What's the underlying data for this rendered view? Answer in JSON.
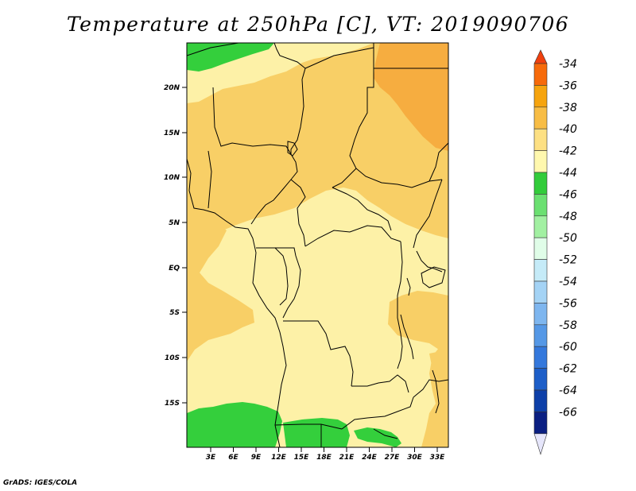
{
  "title": "Temperature at 250hPa [C], VT: 2019090706",
  "credit": "GrADS: IGES/COLA",
  "latitude_labels": [
    "20N",
    "15N",
    "10N",
    "5N",
    "EQ",
    "5S",
    "10S",
    "15S"
  ],
  "longitude_labels": [
    "3E",
    "6E",
    "9E",
    "12E",
    "15E",
    "18E",
    "21E",
    "24E",
    "27E",
    "30E",
    "33E"
  ],
  "colorbar": {
    "labels": [
      "-34",
      "-36",
      "-38",
      "-40",
      "-42",
      "-44",
      "-46",
      "-48",
      "-50",
      "-52",
      "-54",
      "-56",
      "-58",
      "-60",
      "-62",
      "-64",
      "-66"
    ],
    "colors": [
      "#f0400e",
      "#f76a0a",
      "#f6a40e",
      "#f8bd45",
      "#fde083",
      "#fff8ae",
      "#32cc3a",
      "#6be071",
      "#a2f0a2",
      "#e0fde8",
      "#c5ebf8",
      "#a4d3f5",
      "#7eb6ef",
      "#5598e6",
      "#3478dc",
      "#1d5ec8",
      "#0d3fa8",
      "#0b1f82",
      "#e6e6fb"
    ]
  },
  "colors": {
    "band_neg38_neg40": "#f6ad40",
    "band_neg40_neg42": "#f8cf66",
    "band_neg42_neg44": "#fdf1a7",
    "band_neg44_neg46": "#34cf3c"
  }
}
